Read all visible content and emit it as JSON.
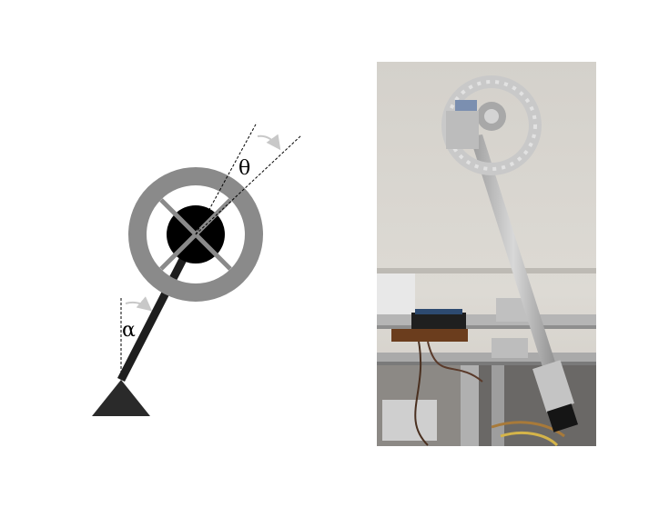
{
  "diagram": {
    "angle_labels": {
      "pendulum_angle": "α",
      "wheel_angle": "θ"
    },
    "colors": {
      "rod": "#1e1e1e",
      "base": "#2a2a2a",
      "hub": "#000000",
      "wheel_ring": "#8a8a8a",
      "wheel_spokes": "#8a8a8a",
      "reference_lines": "#000000",
      "angle_arrows": "#c8c8c8"
    }
  },
  "photo": {
    "subject": "reaction-wheel-pendulum-hardware"
  }
}
